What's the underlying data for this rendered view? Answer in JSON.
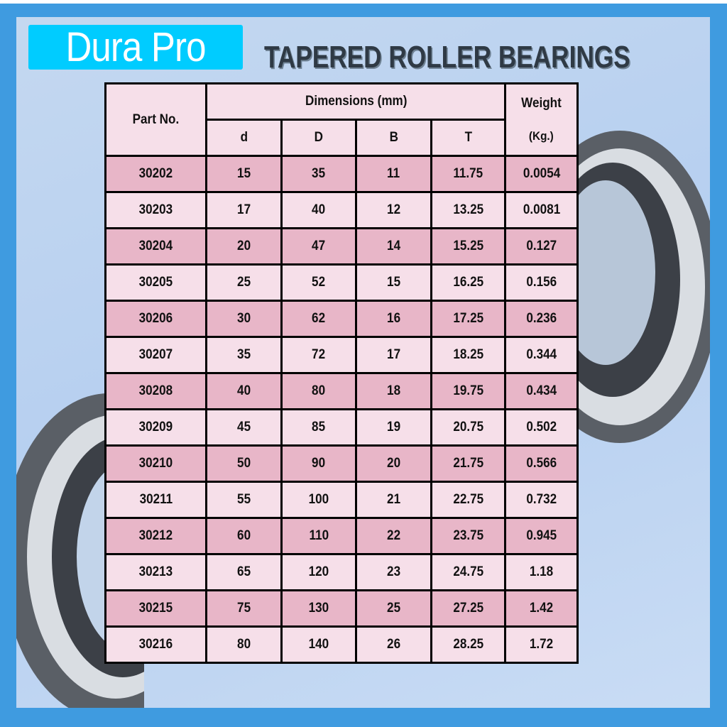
{
  "brand": {
    "logo_text": "Dura Pro",
    "logo_color": "#00ccff"
  },
  "title": "TAPERED ROLLER BEARINGS",
  "colors": {
    "frame": "#3f9be0",
    "row_dark": "#e8b6c8",
    "row_light": "#f6dfe9"
  },
  "table": {
    "headers": {
      "part_no": "Part No.",
      "dimensions": "Dimensions (mm)",
      "weight_line1": "Weight",
      "weight_line2": "(Kg.)",
      "d": "d",
      "D": "D",
      "B": "B",
      "T": "T"
    },
    "rows": [
      [
        "30202",
        "15",
        "35",
        "11",
        "11.75",
        "0.0054"
      ],
      [
        "30203",
        "17",
        "40",
        "12",
        "13.25",
        "0.0081"
      ],
      [
        "30204",
        "20",
        "47",
        "14",
        "15.25",
        "0.127"
      ],
      [
        "30205",
        "25",
        "52",
        "15",
        "16.25",
        "0.156"
      ],
      [
        "30206",
        "30",
        "62",
        "16",
        "17.25",
        "0.236"
      ],
      [
        "30207",
        "35",
        "72",
        "17",
        "18.25",
        "0.344"
      ],
      [
        "30208",
        "40",
        "80",
        "18",
        "19.75",
        "0.434"
      ],
      [
        "30209",
        "45",
        "85",
        "19",
        "20.75",
        "0.502"
      ],
      [
        "30210",
        "50",
        "90",
        "20",
        "21.75",
        "0.566"
      ],
      [
        "30211",
        "55",
        "100",
        "21",
        "22.75",
        "0.732"
      ],
      [
        "30212",
        "60",
        "110",
        "22",
        "23.75",
        "0.945"
      ],
      [
        "30213",
        "65",
        "120",
        "23",
        "24.75",
        "1.18"
      ],
      [
        "30215",
        "75",
        "130",
        "25",
        "27.25",
        "1.42"
      ],
      [
        "30216",
        "80",
        "140",
        "26",
        "28.25",
        "1.72"
      ]
    ]
  }
}
